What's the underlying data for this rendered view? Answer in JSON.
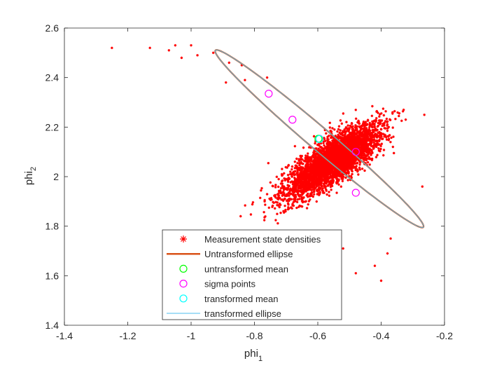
{
  "chart_data": {
    "type": "scatter",
    "title": "",
    "xlabel": "phi",
    "xlabel_sub": "1",
    "ylabel": "phi",
    "ylabel_sub": "2",
    "xlim": [
      -1.4,
      -0.2
    ],
    "ylim": [
      1.4,
      2.6
    ],
    "xticks": [
      -1.4,
      -1.2,
      -1.0,
      -0.8,
      -0.6,
      -0.4,
      -0.2
    ],
    "xtick_labels": [
      "-1.4",
      "-1.2",
      "-1",
      "-0.8",
      "-0.6",
      "-0.4",
      "-0.2"
    ],
    "yticks": [
      1.4,
      1.6,
      1.8,
      2.0,
      2.2,
      2.4,
      2.6
    ],
    "ytick_labels": [
      "1.4",
      "1.6",
      "1.8",
      "2",
      "2.2",
      "2.4",
      "2.6"
    ],
    "grid": false,
    "legend_position": "bottom-center",
    "colors": {
      "scatter": "#ff0000",
      "untransformed_ellipse": "#d95319",
      "transformed_ellipse": "#4dbeee",
      "untransformed_mean": "#00ff00",
      "sigma_points": "#ff00ff",
      "transformed_mean": "#00ffff"
    },
    "series": [
      {
        "name": "Measurement state densities",
        "marker": "asterisk",
        "cloud": {
          "center": [
            -0.545,
            2.07
          ],
          "sd_major": 0.09,
          "sd_minor": 0.033,
          "angle_deg": -45,
          "count": 4000
        },
        "outliers": [
          [
            -1.25,
            2.52
          ],
          [
            -1.13,
            2.52
          ],
          [
            -1.07,
            2.51
          ],
          [
            -1.05,
            2.53
          ],
          [
            -1.0,
            2.53
          ],
          [
            -0.98,
            2.49
          ],
          [
            -1.03,
            2.48
          ],
          [
            -0.93,
            2.5
          ],
          [
            -0.88,
            2.46
          ],
          [
            -0.84,
            2.45
          ],
          [
            -0.83,
            2.39
          ],
          [
            -0.76,
            2.4
          ],
          [
            -0.89,
            2.38
          ],
          [
            -0.27,
            1.96
          ],
          [
            -0.37,
            1.75
          ],
          [
            -0.4,
            1.58
          ],
          [
            -0.48,
            1.61
          ],
          [
            -0.42,
            1.64
          ],
          [
            -0.38,
            1.69
          ],
          [
            -0.52,
            1.71
          ]
        ]
      },
      {
        "name": "Untransformed ellipse",
        "type": "ellipse",
        "center": [
          -0.595,
          2.153
        ],
        "semi_major": 0.485,
        "semi_minor": 0.04,
        "angle_deg": -47.5
      },
      {
        "name": "untransformed mean",
        "marker": "circle",
        "points": [
          [
            -0.598,
            2.153
          ]
        ]
      },
      {
        "name": "sigma points",
        "marker": "circle",
        "points": [
          [
            -0.755,
            2.335
          ],
          [
            -0.68,
            2.23
          ],
          [
            -0.595,
            2.153
          ],
          [
            -0.48,
            2.1
          ],
          [
            -0.48,
            1.935
          ]
        ]
      },
      {
        "name": "transformed mean",
        "marker": "circle",
        "points": [
          [
            -0.595,
            2.152
          ]
        ]
      },
      {
        "name": "transformed ellipse",
        "type": "ellipse",
        "center": [
          -0.595,
          2.153
        ],
        "semi_major": 0.485,
        "semi_minor": 0.04,
        "angle_deg": -47.5
      }
    ]
  }
}
